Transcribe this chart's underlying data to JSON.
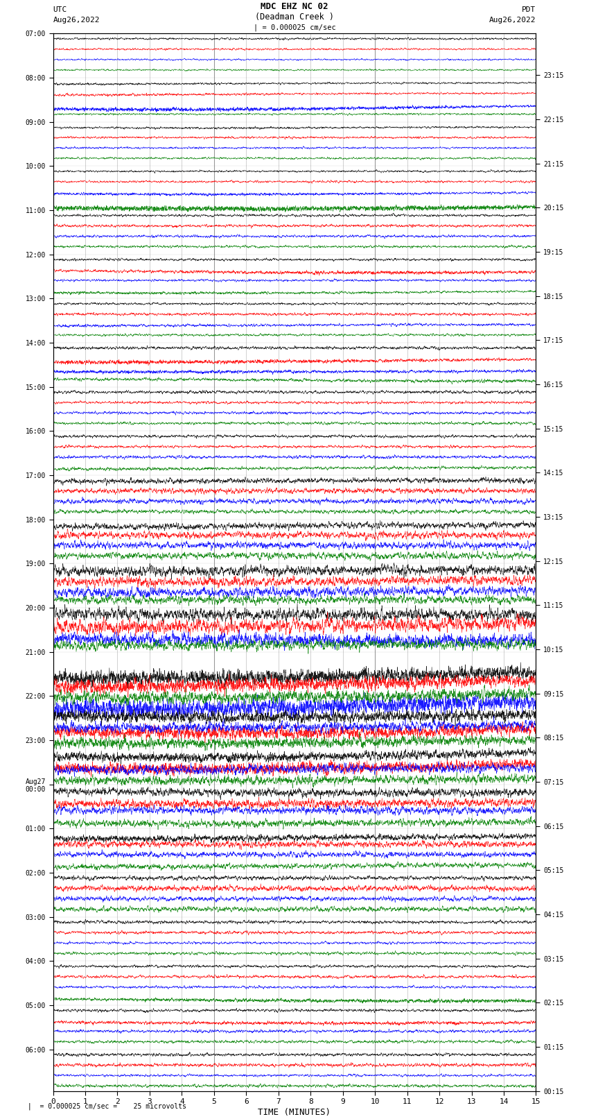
{
  "title_line1": "MDC EHZ NC 02",
  "title_line2": "(Deadman Creek )",
  "scale_label": "| = 0.000025 cm/sec",
  "left_label_line1": "UTC",
  "left_label_line2": "Aug26,2022",
  "right_label_line1": "PDT",
  "right_label_line2": "Aug26,2022",
  "xlabel": "TIME (MINUTES)",
  "bottom_note": " |  = 0.000025 cm/sec =    25 microvolts",
  "xlim": [
    0,
    15
  ],
  "colors": [
    "black",
    "red",
    "blue",
    "green"
  ],
  "bg_color": "white",
  "figure_width": 8.5,
  "figure_height": 16.13,
  "dpi": 100,
  "n_groups": 24,
  "traces_per_group": 4,
  "left_tick_labels": [
    "07:00",
    "08:00",
    "09:00",
    "10:00",
    "11:00",
    "12:00",
    "13:00",
    "14:00",
    "15:00",
    "16:00",
    "17:00",
    "18:00",
    "19:00",
    "20:00",
    "21:00",
    "22:00",
    "23:00",
    "Aug27\n00:00",
    "01:00",
    "02:00",
    "03:00",
    "04:00",
    "05:00",
    "06:00"
  ],
  "right_tick_labels": [
    "00:15",
    "01:15",
    "02:15",
    "03:15",
    "04:15",
    "05:15",
    "06:15",
    "07:15",
    "08:15",
    "09:15",
    "10:15",
    "11:15",
    "12:15",
    "13:15",
    "14:15",
    "15:15",
    "16:15",
    "17:15",
    "18:15",
    "19:15",
    "20:15",
    "21:15",
    "22:15",
    "23:15"
  ]
}
